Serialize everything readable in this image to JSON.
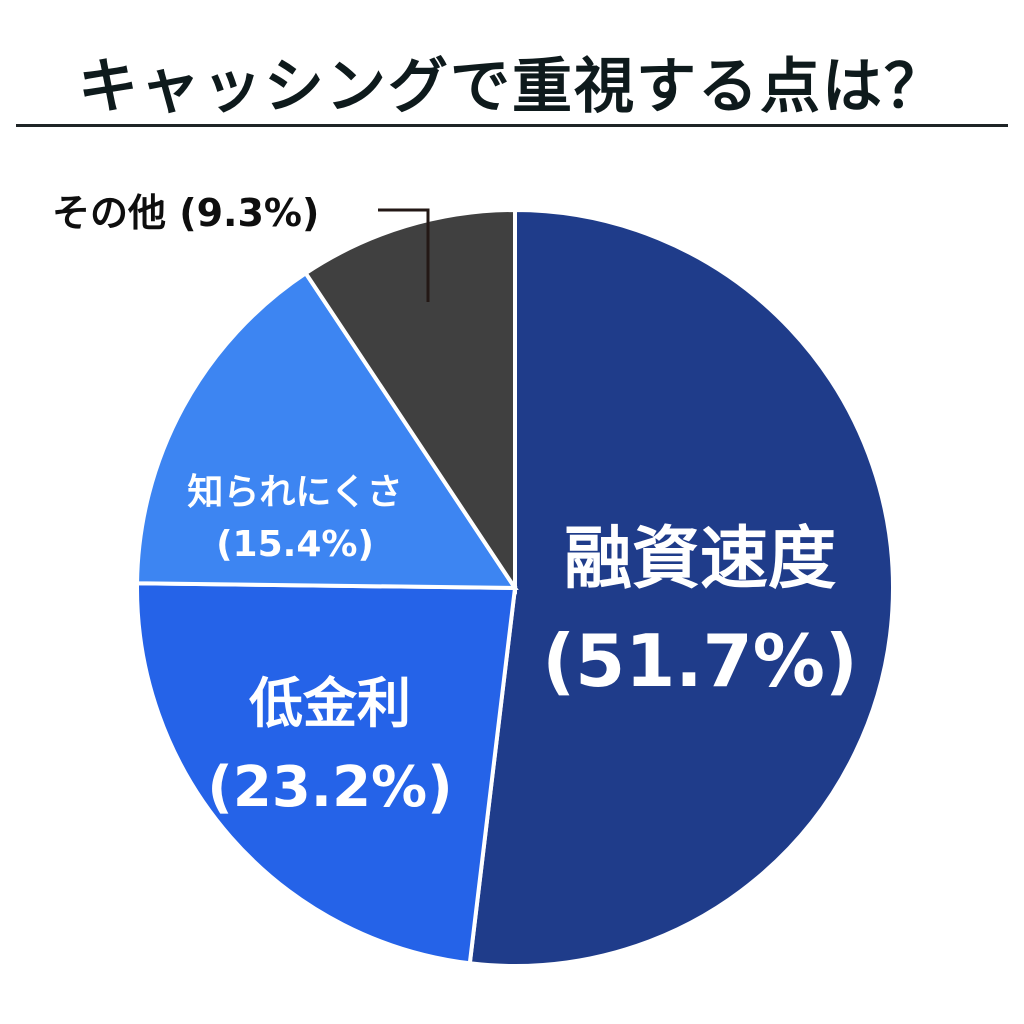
{
  "title": "キャッシングで重視する点は？",
  "chart_data": {
    "type": "pie",
    "title": "キャッシングで重視する点は？",
    "start_angle_deg": 0,
    "direction": "clockwise",
    "categories": [
      "融資速度",
      "低金利",
      "知られにくさ",
      "その他"
    ],
    "values": [
      51.7,
      23.2,
      15.4,
      9.3
    ],
    "colors": [
      "#1f3c8a",
      "#2563e8",
      "#3d85f2",
      "#404040"
    ],
    "labels": [
      "融資速度 (51.7%)",
      "低金利 (23.2%)",
      "知られにくさ (15.4%)",
      "その他 (9.3%)"
    ],
    "legend": "none",
    "label_position": "inside, except その他 outside with leader line"
  },
  "slices": [
    {
      "name": "融資速度",
      "pct": "(51.7%)"
    },
    {
      "name": "低金利",
      "pct": "(23.2%)"
    },
    {
      "name": "知られにくさ",
      "pct": "(15.4%)"
    },
    {
      "name": "その他",
      "pct": "(9.3%)",
      "full": "その他 (9.3%)"
    }
  ]
}
